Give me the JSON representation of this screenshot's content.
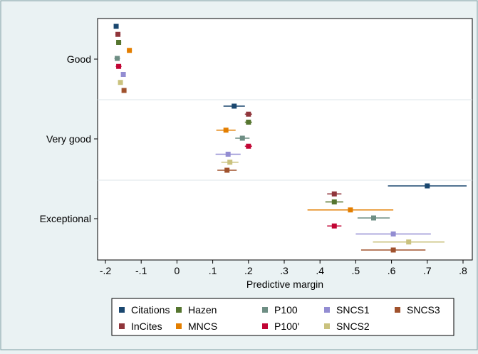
{
  "chart_data": {
    "type": "scatter",
    "orientation": "horizontal",
    "xlabel": "Predictive margin",
    "xlim": [
      -0.22,
      0.82
    ],
    "x_ticks": [
      "-.2",
      "-.1",
      "0",
      ".1",
      ".2",
      ".3",
      ".4",
      ".5",
      ".6",
      ".7",
      ".8"
    ],
    "x_tick_values": [
      -0.2,
      -0.1,
      0,
      0.1,
      0.2,
      0.3,
      0.4,
      0.5,
      0.6,
      0.7,
      0.8
    ],
    "categories": [
      "Good",
      "Very good",
      "Exceptional"
    ],
    "grid": true,
    "legend_position": "bottom",
    "series": [
      {
        "name": "Citations",
        "color": "#1a476f",
        "points": [
          {
            "x": -0.17,
            "lo": -0.175,
            "hi": -0.165
          },
          {
            "x": 0.16,
            "lo": 0.13,
            "hi": 0.19
          },
          {
            "x": 0.7,
            "lo": 0.59,
            "hi": 0.81
          }
        ]
      },
      {
        "name": "InCites",
        "color": "#90353b",
        "points": [
          {
            "x": -0.165,
            "lo": -0.172,
            "hi": -0.158
          },
          {
            "x": 0.2,
            "lo": 0.19,
            "hi": 0.21
          },
          {
            "x": 0.44,
            "lo": 0.42,
            "hi": 0.46
          }
        ]
      },
      {
        "name": "Hazen",
        "color": "#55752f",
        "points": [
          {
            "x": -0.163,
            "lo": -0.17,
            "hi": -0.156
          },
          {
            "x": 0.2,
            "lo": 0.19,
            "hi": 0.21
          },
          {
            "x": 0.44,
            "lo": 0.415,
            "hi": 0.465
          }
        ]
      },
      {
        "name": "MNCS",
        "color": "#e37e00",
        "points": [
          {
            "x": -0.133,
            "lo": -0.14,
            "hi": -0.126
          },
          {
            "x": 0.137,
            "lo": 0.11,
            "hi": 0.164
          },
          {
            "x": 0.485,
            "lo": 0.365,
            "hi": 0.605
          }
        ]
      },
      {
        "name": "P100",
        "color": "#6e8e84",
        "points": [
          {
            "x": -0.167,
            "lo": -0.175,
            "hi": -0.159
          },
          {
            "x": 0.183,
            "lo": 0.163,
            "hi": 0.203
          },
          {
            "x": 0.55,
            "lo": 0.505,
            "hi": 0.595
          }
        ]
      },
      {
        "name": "P100'",
        "color": "#c10534",
        "points": [
          {
            "x": -0.163,
            "lo": -0.171,
            "hi": -0.155
          },
          {
            "x": 0.2,
            "lo": 0.19,
            "hi": 0.21
          },
          {
            "x": 0.44,
            "lo": 0.42,
            "hi": 0.46
          }
        ]
      },
      {
        "name": "SNCS1",
        "color": "#938dd2",
        "points": [
          {
            "x": -0.15,
            "lo": -0.152,
            "hi": -0.148
          },
          {
            "x": 0.143,
            "lo": 0.108,
            "hi": 0.178
          },
          {
            "x": 0.605,
            "lo": 0.5,
            "hi": 0.71
          }
        ]
      },
      {
        "name": "SNCS2",
        "color": "#cac27e",
        "points": [
          {
            "x": -0.158,
            "lo": -0.163,
            "hi": -0.153
          },
          {
            "x": 0.148,
            "lo": 0.124,
            "hi": 0.172
          },
          {
            "x": 0.648,
            "lo": 0.548,
            "hi": 0.748
          }
        ]
      },
      {
        "name": "SNCS3",
        "color": "#a0522d",
        "points": [
          {
            "x": -0.148,
            "lo": -0.154,
            "hi": -0.142
          },
          {
            "x": 0.14,
            "lo": 0.113,
            "hi": 0.167
          },
          {
            "x": 0.605,
            "lo": 0.515,
            "hi": 0.695
          }
        ]
      }
    ]
  }
}
